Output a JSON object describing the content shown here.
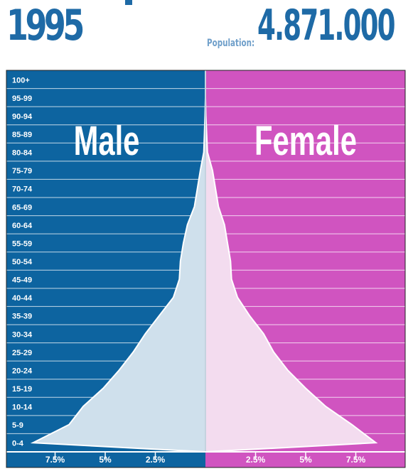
{
  "header": {
    "year": "1995",
    "population_label": "Population:",
    "population_value": "4.871.000"
  },
  "colors": {
    "male_bg": "#0d64a0",
    "female_bg": "#d054c0",
    "male_fill": "#cfe0ec",
    "female_fill": "#f3dcef",
    "header_blue": "#1e6aa6",
    "header_light_blue": "#6f9fca"
  },
  "chart_data": {
    "type": "area",
    "title": "",
    "panels": {
      "left": "Male",
      "right": "Female"
    },
    "age_groups": [
      "0-4",
      "5-9",
      "10-14",
      "15-19",
      "20-24",
      "25-29",
      "30-34",
      "35-39",
      "40-44",
      "45-49",
      "50-54",
      "55-59",
      "60-64",
      "65-69",
      "70-74",
      "75-79",
      "80-84",
      "85-89",
      "90-94",
      "95-99",
      "100+"
    ],
    "series": [
      {
        "name": "Male",
        "unit": "%",
        "values": [
          8.6,
          6.8,
          6.1,
          5.1,
          4.3,
          3.6,
          3.0,
          2.3,
          1.6,
          1.3,
          1.25,
          1.1,
          0.9,
          0.55,
          0.4,
          0.25,
          0.08,
          0.05,
          0.02,
          0.0,
          0.0
        ]
      },
      {
        "name": "Female",
        "unit": "%",
        "values": [
          8.5,
          7.3,
          6.0,
          5.0,
          4.1,
          3.4,
          2.9,
          2.2,
          1.6,
          1.3,
          1.25,
          1.1,
          0.95,
          0.65,
          0.5,
          0.35,
          0.1,
          0.06,
          0.02,
          0.0,
          0.0
        ]
      }
    ],
    "x_ticks": {
      "male": [
        "7.5%",
        "5%",
        "2.5%"
      ],
      "female": [
        "2.5%",
        "5%",
        "7.5%"
      ],
      "values": [
        7.5,
        5,
        2.5
      ]
    },
    "xlim": [
      0,
      10
    ],
    "grid": true
  }
}
